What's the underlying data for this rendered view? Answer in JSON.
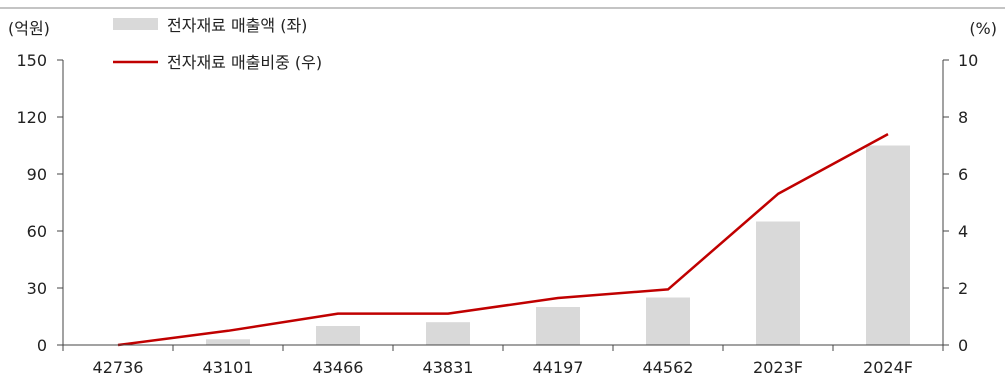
{
  "chart_data": {
    "type": "bar+line",
    "categories": [
      "42736",
      "43101",
      "43466",
      "43831",
      "44197",
      "44562",
      "2023F",
      "2024F"
    ],
    "series": [
      {
        "name": "전자재료 매출액 (좌)",
        "type": "bar",
        "axis": "left",
        "values": [
          0,
          3,
          10,
          12,
          20,
          25,
          65,
          105
        ]
      },
      {
        "name": "전자재료 매출비중 (우)",
        "type": "line",
        "axis": "right",
        "values": [
          0,
          0.5,
          1.1,
          1.1,
          1.65,
          1.95,
          5.3,
          7.4
        ]
      }
    ],
    "y_left": {
      "unit_label": "(억원)",
      "min": 0,
      "max": 150,
      "ticks": [
        0,
        30,
        60,
        90,
        120,
        150
      ]
    },
    "y_right": {
      "unit_label": "(%)",
      "min": 0,
      "max": 10,
      "ticks": [
        0,
        2,
        4,
        6,
        8,
        10
      ]
    },
    "legend_position": "top-left",
    "colors": {
      "bar": "#d9d9d9",
      "line": "#c00000",
      "axis": "#444444",
      "frame": "#888888"
    },
    "grid": false
  }
}
